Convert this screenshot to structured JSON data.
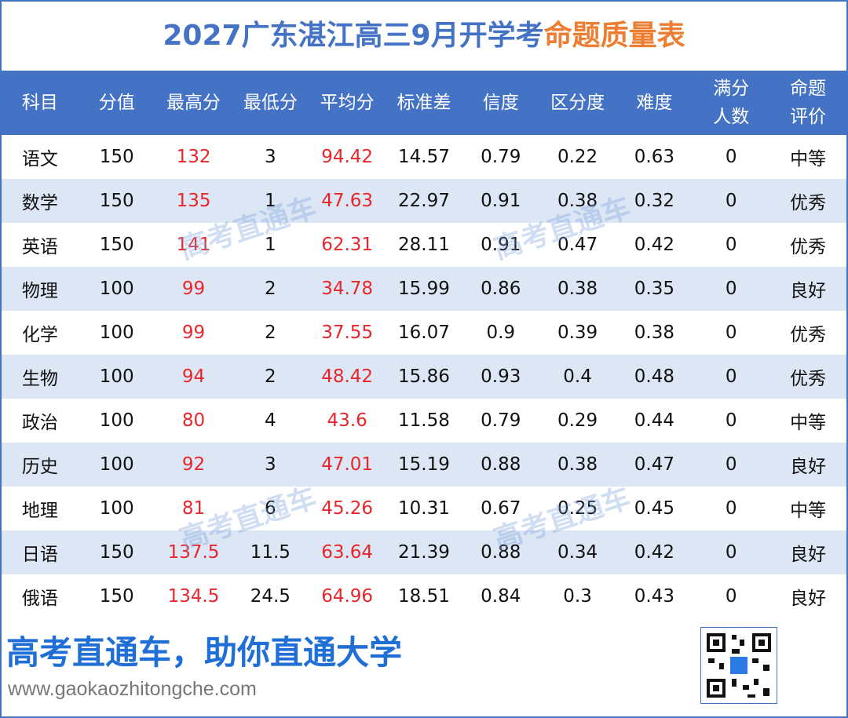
{
  "title": {
    "main": "2027广东湛江高三9月开学考",
    "highlight": "命题质量表"
  },
  "table": {
    "headers": [
      "科目",
      "分值",
      "最高分",
      "最低分",
      "平均分",
      "标准差",
      "信度",
      "区分度",
      "难度",
      [
        "满分",
        "人数"
      ],
      [
        "命题",
        "评价"
      ]
    ],
    "rows": [
      [
        "语文",
        150,
        132,
        3,
        94.42,
        14.57,
        0.79,
        0.22,
        0.63,
        0,
        "中等"
      ],
      [
        "数学",
        150,
        135,
        1,
        47.63,
        22.97,
        0.91,
        0.38,
        0.32,
        0,
        "优秀"
      ],
      [
        "英语",
        150,
        141,
        1,
        62.31,
        28.11,
        0.91,
        0.47,
        0.42,
        0,
        "优秀"
      ],
      [
        "物理",
        100,
        99,
        2,
        34.78,
        15.99,
        0.86,
        0.38,
        0.35,
        0,
        "良好"
      ],
      [
        "化学",
        100,
        99,
        2,
        37.55,
        16.07,
        0.9,
        0.39,
        0.38,
        0,
        "优秀"
      ],
      [
        "生物",
        100,
        94,
        2,
        48.42,
        15.86,
        0.93,
        0.4,
        0.48,
        0,
        "优秀"
      ],
      [
        "政治",
        100,
        80,
        4,
        43.6,
        11.58,
        0.79,
        0.29,
        0.44,
        0,
        "中等"
      ],
      [
        "历史",
        100,
        92,
        3,
        47.01,
        15.19,
        0.88,
        0.38,
        0.47,
        0,
        "良好"
      ],
      [
        "地理",
        100,
        81,
        6,
        45.26,
        10.31,
        0.67,
        0.25,
        0.45,
        0,
        "中等"
      ],
      [
        "日语",
        150,
        137.5,
        11.5,
        63.64,
        21.39,
        0.88,
        0.34,
        0.42,
        0,
        "良好"
      ],
      [
        "俄语",
        150,
        134.5,
        24.5,
        64.96,
        18.51,
        0.84,
        0.3,
        0.43,
        0,
        "良好"
      ]
    ]
  },
  "watermark": "高考直通车",
  "footer": {
    "slogan": "高考直通车，助你直通大学",
    "url": "www.gaokaozhitongche.com"
  }
}
